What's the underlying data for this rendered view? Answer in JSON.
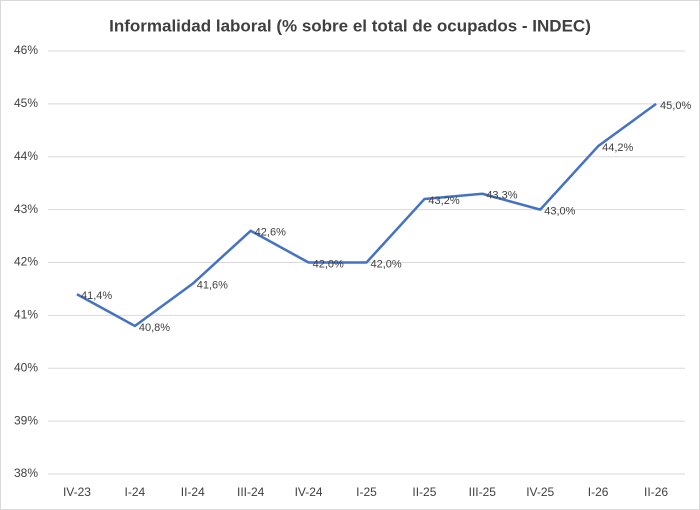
{
  "chart_data": {
    "type": "line",
    "title": "Informalidad laboral (% sobre el total de ocupados - INDEC)",
    "categories": [
      "IV-23",
      "I-24",
      "II-24",
      "III-24",
      "IV-24",
      "I-25",
      "II-25",
      "III-25",
      "IV-25",
      "I-26",
      "II-26"
    ],
    "values": [
      41.4,
      40.8,
      41.6,
      42.6,
      42.0,
      42.0,
      43.2,
      43.3,
      43.0,
      44.2,
      45.0
    ],
    "value_labels": [
      "41,4%",
      "40,8%",
      "41,6%",
      "42,6%",
      "42,0%",
      "42,0%",
      "43,2%",
      "43,3%",
      "43,0%",
      "44,2%",
      "45,0%"
    ],
    "color": "#4472c4",
    "ylim": [
      38,
      46
    ],
    "yticks": [
      {
        "value": 38,
        "label": "38%"
      },
      {
        "value": 39,
        "label": "39%"
      },
      {
        "value": 40,
        "label": "40%"
      },
      {
        "value": 41,
        "label": "41%"
      },
      {
        "value": 42,
        "label": "42%"
      },
      {
        "value": 43,
        "label": "43%"
      },
      {
        "value": 44,
        "label": "44%"
      },
      {
        "value": 45,
        "label": "45%"
      },
      {
        "value": 46,
        "label": "46%"
      }
    ],
    "grid": true
  }
}
